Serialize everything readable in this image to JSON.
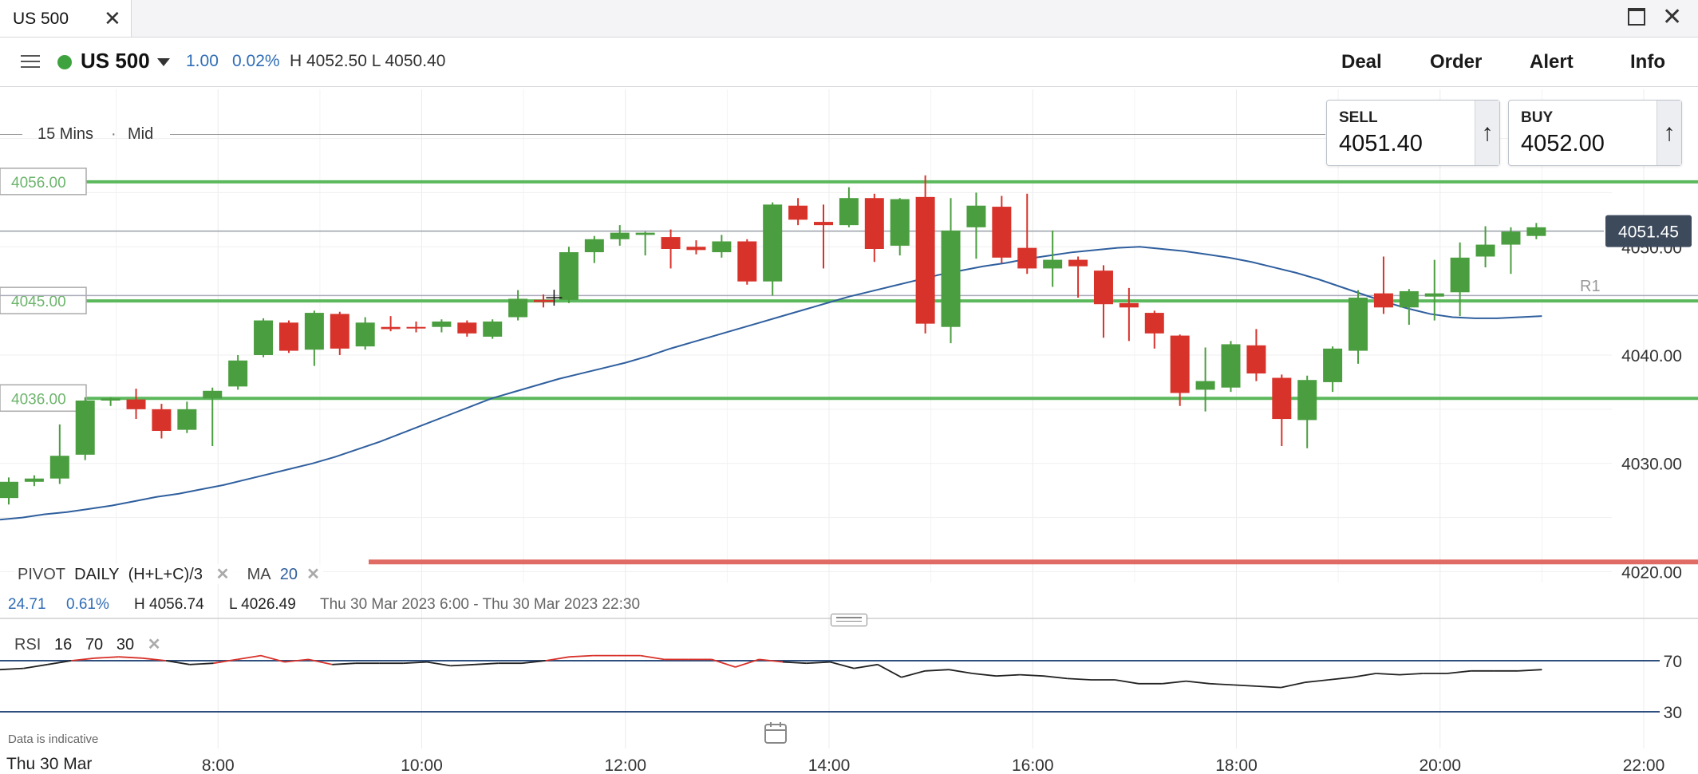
{
  "tab": {
    "label": "US 500"
  },
  "header": {
    "market": "US 500",
    "change_abs": "1.00",
    "change_pct": "0.02%",
    "hl_text": "H 4052.50  L 4050.40",
    "buttons": [
      "Deal",
      "Order",
      "Alert",
      "Info"
    ]
  },
  "toolbar": {
    "interval": "15 Mins",
    "separator": "·",
    "price_type": "Mid"
  },
  "tickets": {
    "sell": {
      "label": "SELL",
      "price": "4051.40",
      "arrow": "↑"
    },
    "buy": {
      "label": "BUY",
      "price": "4052.00",
      "arrow": "↑"
    }
  },
  "indicators": {
    "pivot": {
      "name": "PIVOT",
      "period": "DAILY",
      "formula": "(H+L+C)/3"
    },
    "ma": {
      "name": "MA",
      "period": "20"
    },
    "rsi": {
      "name": "RSI",
      "period": "16",
      "upper": "70",
      "lower": "30"
    }
  },
  "info_row": {
    "change_abs": "24.71",
    "change_pct": "0.61%",
    "high": "H 4056.74",
    "low": "L 4026.49",
    "range": "Thu 30 Mar 2023 6:00 - Thu 30 Mar 2023 22:30"
  },
  "footer": {
    "disclaimer": "Data is indicative",
    "date": "Thu 30 Mar"
  },
  "colors": {
    "up": "#4a9e3f",
    "down": "#d8332b",
    "ma": "#2f5f9e",
    "pivot": "#5cb85c",
    "rsi": "#222222",
    "rsi_over": "#d8332b",
    "current_price_tag": "#3c4a5c"
  },
  "chart_data": {
    "type": "candlestick",
    "x_ticks": [
      "8:00",
      "10:00",
      "12:00",
      "14:00",
      "16:00",
      "18:00",
      "20:00",
      "22:00"
    ],
    "x_range": [
      "6:00",
      "22:00"
    ],
    "y_ticks": [
      4020,
      4030,
      4040,
      4050,
      4060
    ],
    "y_range": [
      4019,
      4061
    ],
    "y_tick_labels": [
      "4020.00",
      "4030.00",
      "4040.00",
      "4050.00",
      "4060.00"
    ],
    "current_price": 4051.45,
    "current_price_label": "4051.45",
    "pivot_levels": [
      {
        "label": "4056.00",
        "value": 4056.0
      },
      {
        "label": "4045.00",
        "value": 4045.0
      },
      {
        "label": "4036.00",
        "value": 4036.0
      },
      {
        "label": "",
        "value": 4020.9
      }
    ],
    "pivot_tags": [
      "R1"
    ],
    "candles": [
      {
        "t": "6:00",
        "o": 4026.8,
        "h": 4028.7,
        "l": 4026.2,
        "c": 4028.3
      },
      {
        "t": "6:15",
        "o": 4028.3,
        "h": 4028.9,
        "l": 4027.9,
        "c": 4028.6
      },
      {
        "t": "6:30",
        "o": 4028.6,
        "h": 4033.6,
        "l": 4028.1,
        "c": 4030.7
      },
      {
        "t": "6:45",
        "o": 4030.8,
        "h": 4036.1,
        "l": 4030.3,
        "c": 4035.8
      },
      {
        "t": "7:00",
        "o": 4035.8,
        "h": 4036.1,
        "l": 4035.3,
        "c": 4036.0
      },
      {
        "t": "7:15",
        "o": 4035.9,
        "h": 4036.9,
        "l": 4034.1,
        "c": 4035.0
      },
      {
        "t": "7:30",
        "o": 4035.0,
        "h": 4035.5,
        "l": 4032.3,
        "c": 4033.0
      },
      {
        "t": "7:45",
        "o": 4033.1,
        "h": 4035.7,
        "l": 4032.8,
        "c": 4035.0
      },
      {
        "t": "8:00",
        "o": 4036.0,
        "h": 4037.0,
        "l": 4031.6,
        "c": 4036.7
      },
      {
        "t": "8:15",
        "o": 4037.1,
        "h": 4040.0,
        "l": 4036.8,
        "c": 4039.5
      },
      {
        "t": "8:30",
        "o": 4040.0,
        "h": 4043.4,
        "l": 4039.8,
        "c": 4043.2
      },
      {
        "t": "8:45",
        "o": 4043.0,
        "h": 4043.2,
        "l": 4040.2,
        "c": 4040.4
      },
      {
        "t": "9:00",
        "o": 4040.5,
        "h": 4044.1,
        "l": 4039.0,
        "c": 4043.9
      },
      {
        "t": "9:15",
        "o": 4043.8,
        "h": 4044.0,
        "l": 4040.0,
        "c": 4040.6
      },
      {
        "t": "9:30",
        "o": 4040.8,
        "h": 4043.5,
        "l": 4040.5,
        "c": 4043.0
      },
      {
        "t": "9:45",
        "o": 4042.6,
        "h": 4043.6,
        "l": 4042.2,
        "c": 4042.4
      },
      {
        "t": "10:00",
        "o": 4042.6,
        "h": 4043.1,
        "l": 4042.1,
        "c": 4042.5
      },
      {
        "t": "10:15",
        "o": 4042.6,
        "h": 4043.3,
        "l": 4042.1,
        "c": 4043.1
      },
      {
        "t": "10:30",
        "o": 4043.0,
        "h": 4043.2,
        "l": 4041.7,
        "c": 4042.0
      },
      {
        "t": "10:45",
        "o": 4041.7,
        "h": 4043.3,
        "l": 4041.5,
        "c": 4043.1
      },
      {
        "t": "11:00",
        "o": 4043.5,
        "h": 4046.0,
        "l": 4043.2,
        "c": 4045.2
      },
      {
        "t": "11:15",
        "o": 4045.1,
        "h": 4045.6,
        "l": 4044.4,
        "c": 4044.9
      },
      {
        "t": "11:30",
        "o": 4045.1,
        "h": 4050.0,
        "l": 4044.8,
        "c": 4049.5
      },
      {
        "t": "11:45",
        "o": 4049.5,
        "h": 4051.0,
        "l": 4048.5,
        "c": 4050.7
      },
      {
        "t": "12:00",
        "o": 4050.7,
        "h": 4052.0,
        "l": 4050.1,
        "c": 4051.3
      },
      {
        "t": "12:15",
        "o": 4051.1,
        "h": 4051.4,
        "l": 4049.2,
        "c": 4051.3
      },
      {
        "t": "12:30",
        "o": 4050.9,
        "h": 4051.6,
        "l": 4048.0,
        "c": 4049.8
      },
      {
        "t": "12:45",
        "o": 4050.0,
        "h": 4050.6,
        "l": 4049.3,
        "c": 4049.7
      },
      {
        "t": "13:00",
        "o": 4049.5,
        "h": 4051.1,
        "l": 4049.0,
        "c": 4050.5
      },
      {
        "t": "13:15",
        "o": 4050.5,
        "h": 4050.7,
        "l": 4046.5,
        "c": 4046.8
      },
      {
        "t": "13:30",
        "o": 4046.8,
        "h": 4054.1,
        "l": 4045.5,
        "c": 4053.9
      },
      {
        "t": "13:45",
        "o": 4053.8,
        "h": 4054.5,
        "l": 4052.0,
        "c": 4052.5
      },
      {
        "t": "14:00",
        "o": 4052.3,
        "h": 4053.9,
        "l": 4048.0,
        "c": 4052.0
      },
      {
        "t": "14:15",
        "o": 4052.0,
        "h": 4055.5,
        "l": 4051.8,
        "c": 4054.5
      },
      {
        "t": "14:30",
        "o": 4054.5,
        "h": 4054.9,
        "l": 4048.6,
        "c": 4049.8
      },
      {
        "t": "14:45",
        "o": 4050.1,
        "h": 4054.5,
        "l": 4049.2,
        "c": 4054.4
      },
      {
        "t": "15:00",
        "o": 4054.6,
        "h": 4056.6,
        "l": 4042.0,
        "c": 4042.9
      },
      {
        "t": "15:15",
        "o": 4042.6,
        "h": 4054.5,
        "l": 4041.1,
        "c": 4051.5
      },
      {
        "t": "15:30",
        "o": 4051.8,
        "h": 4055.0,
        "l": 4048.9,
        "c": 4053.8
      },
      {
        "t": "15:45",
        "o": 4053.7,
        "h": 4054.7,
        "l": 4048.5,
        "c": 4049.0
      },
      {
        "t": "16:00",
        "o": 4049.9,
        "h": 4054.9,
        "l": 4047.5,
        "c": 4048.0
      },
      {
        "t": "16:15",
        "o": 4048.0,
        "h": 4051.5,
        "l": 4046.3,
        "c": 4048.8
      },
      {
        "t": "16:30",
        "o": 4048.8,
        "h": 4049.1,
        "l": 4045.3,
        "c": 4048.2
      },
      {
        "t": "16:45",
        "o": 4047.8,
        "h": 4048.3,
        "l": 4041.6,
        "c": 4044.7
      },
      {
        "t": "17:00",
        "o": 4044.8,
        "h": 4046.2,
        "l": 4041.3,
        "c": 4044.4
      },
      {
        "t": "17:15",
        "o": 4043.9,
        "h": 4044.1,
        "l": 4040.6,
        "c": 4042.0
      },
      {
        "t": "17:30",
        "o": 4041.8,
        "h": 4041.9,
        "l": 4035.3,
        "c": 4036.5
      },
      {
        "t": "17:45",
        "o": 4036.8,
        "h": 4040.7,
        "l": 4034.8,
        "c": 4037.6
      },
      {
        "t": "18:00",
        "o": 4037.0,
        "h": 4041.3,
        "l": 4036.6,
        "c": 4041.0
      },
      {
        "t": "18:15",
        "o": 4040.9,
        "h": 4042.4,
        "l": 4037.6,
        "c": 4038.3
      },
      {
        "t": "18:30",
        "o": 4037.9,
        "h": 4038.2,
        "l": 4031.6,
        "c": 4034.1
      },
      {
        "t": "18:45",
        "o": 4034.0,
        "h": 4038.1,
        "l": 4031.4,
        "c": 4037.7
      },
      {
        "t": "19:00",
        "o": 4037.5,
        "h": 4040.8,
        "l": 4036.6,
        "c": 4040.6
      },
      {
        "t": "19:15",
        "o": 4040.4,
        "h": 4046.0,
        "l": 4039.2,
        "c": 4045.3
      },
      {
        "t": "19:30",
        "o": 4045.7,
        "h": 4049.1,
        "l": 4043.8,
        "c": 4044.4
      },
      {
        "t": "19:45",
        "o": 4044.4,
        "h": 4046.1,
        "l": 4042.8,
        "c": 4045.9
      },
      {
        "t": "20:00",
        "o": 4045.4,
        "h": 4048.8,
        "l": 4043.2,
        "c": 4045.7
      },
      {
        "t": "20:15",
        "o": 4045.8,
        "h": 4050.4,
        "l": 4043.6,
        "c": 4049.0
      },
      {
        "t": "20:30",
        "o": 4049.1,
        "h": 4051.9,
        "l": 4048.1,
        "c": 4050.2
      },
      {
        "t": "20:45",
        "o": 4050.2,
        "h": 4051.8,
        "l": 4047.5,
        "c": 4051.4
      },
      {
        "t": "21:00",
        "o": 4051.0,
        "h": 4052.2,
        "l": 4050.7,
        "c": 4051.8
      }
    ],
    "ma20": [
      4024.8,
      4025.0,
      4025.3,
      4025.5,
      4025.8,
      4026.1,
      4026.5,
      4026.9,
      4027.2,
      4027.6,
      4028.0,
      4028.5,
      4029.0,
      4029.5,
      4030.0,
      4030.6,
      4031.3,
      4032.0,
      4032.8,
      4033.6,
      4034.4,
      4035.2,
      4036.0,
      4036.6,
      4037.2,
      4037.8,
      4038.3,
      4038.8,
      4039.3,
      4039.9,
      4040.6,
      4041.2,
      4041.8,
      4042.4,
      4043.0,
      4043.6,
      4044.2,
      4044.8,
      4045.4,
      4045.9,
      4046.4,
      4046.9,
      4047.4,
      4047.8,
      4048.2,
      4048.5,
      4048.9,
      4049.2,
      4049.5,
      4049.7,
      4049.9,
      4050.0,
      4049.8,
      4049.6,
      4049.3,
      4049.0,
      4048.6,
      4048.1,
      4047.6,
      4047.0,
      4046.3,
      4045.6,
      4044.9,
      4044.3,
      4043.8,
      4043.5,
      4043.4,
      4043.4,
      4043.5,
      4043.6
    ],
    "rsi": {
      "y_range": [
        0,
        100
      ],
      "levels": [
        70,
        30
      ],
      "level_labels": [
        "70",
        "30"
      ],
      "values": [
        63,
        64,
        67,
        70,
        72,
        73,
        72,
        70,
        67,
        68,
        71,
        74,
        69,
        71,
        67,
        68,
        68,
        68,
        69,
        66,
        67,
        68,
        68,
        70,
        73,
        74,
        74,
        74,
        71,
        71,
        71,
        65,
        71,
        69,
        68,
        69,
        64,
        67,
        57,
        62,
        63,
        60,
        58,
        59,
        58,
        56,
        55,
        55,
        52,
        52,
        54,
        52,
        51,
        50,
        49,
        53,
        55,
        57,
        60,
        59,
        60,
        60,
        62,
        62,
        62,
        63
      ]
    }
  }
}
